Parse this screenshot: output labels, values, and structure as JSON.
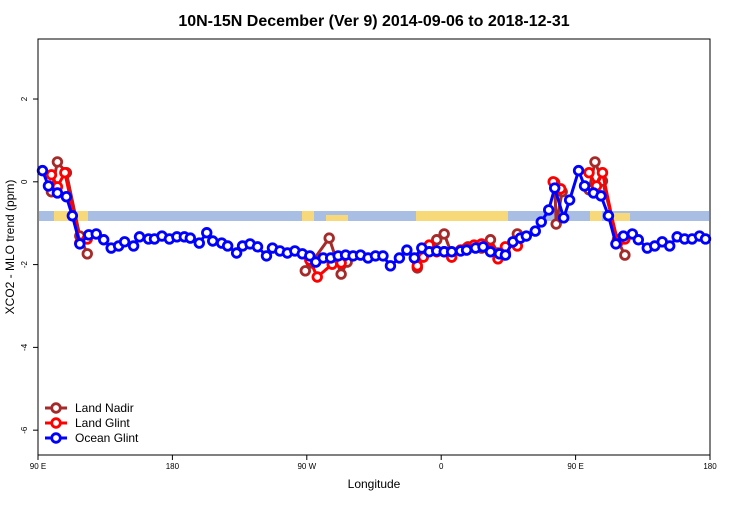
{
  "chart_data": {
    "type": "line",
    "title": "10N-15N December (Ver 9)   2014-09-06 to 2018-12-31",
    "x_label": "Longitude",
    "y_label": "XCO2 - MLO trend (ppm)",
    "xlim": [
      90,
      540
    ],
    "ylim": [
      -6.6,
      3.45
    ],
    "xticks": [
      {
        "value": 90,
        "label": "90 E"
      },
      180,
      {
        "value": 270,
        "label": "90 W"
      },
      {
        "value": 360,
        "label": "0"
      },
      {
        "value": 450,
        "label": "90 E"
      },
      {
        "value": 540,
        "label": "180"
      }
    ],
    "yticks": [
      2,
      0,
      -2,
      -4,
      -6
    ],
    "legend": "bottom-left",
    "series": [
      {
        "name": "Land Nadir",
        "color": "#a52a2a",
        "x": [
          99,
          103,
          109,
          118,
          123,
          null,
          269,
          273,
          285,
          293,
          297,
          null,
          344,
          349,
          357,
          362,
          367,
          373,
          378,
          383,
          387,
          393,
          398,
          403,
          411,
          null,
          436,
          437,
          441,
          null,
          459,
          463,
          468,
          478,
          483
        ],
        "values": [
          -0.24,
          0.48,
          0.22,
          -1.31,
          -1.74,
          null,
          -2.15,
          -1.96,
          -1.36,
          -2.23,
          -1.94,
          null,
          -2.08,
          -1.67,
          -1.4,
          -1.26,
          -1.74,
          -1.65,
          -1.57,
          -1.57,
          -1.6,
          -1.4,
          -1.72,
          -1.72,
          -1.26,
          null,
          -0.02,
          -1.02,
          -0.24,
          null,
          -0.19,
          0.48,
          0.02,
          -1.4,
          -1.77
        ]
      },
      {
        "name": "Land Glint",
        "color": "#ff0000",
        "x": [
          99,
          103,
          108,
          118,
          123,
          null,
          272,
          277,
          287,
          293,
          null,
          344,
          348,
          352,
          357,
          362,
          367,
          373,
          377,
          382,
          387,
          393,
          398,
          403,
          411,
          null,
          435,
          440,
          null,
          459,
          464,
          468,
          478,
          483
        ],
        "values": [
          0.17,
          -0.12,
          0.22,
          -1.48,
          -1.38,
          null,
          -1.89,
          -2.3,
          -1.99,
          -1.96,
          null,
          -2.03,
          -1.82,
          -1.53,
          -1.69,
          -1.69,
          -1.82,
          -1.65,
          -1.6,
          -1.53,
          -1.5,
          -1.62,
          -1.86,
          -1.57,
          -1.55,
          null,
          0.0,
          -0.17,
          null,
          0.22,
          -0.1,
          0.22,
          -1.48,
          -1.38
        ]
      },
      {
        "name": "Ocean Glint",
        "color": "#0000ff",
        "x": [
          93,
          97,
          103,
          109,
          113,
          118,
          124,
          129,
          134,
          139,
          144,
          148,
          154,
          158,
          164,
          168,
          173,
          178,
          183,
          188,
          192,
          198,
          203,
          207,
          213,
          217,
          223,
          227,
          232,
          237,
          243,
          247,
          252,
          257,
          262,
          267,
          272,
          276,
          281,
          286,
          291,
          296,
          301,
          306,
          311,
          316,
          321,
          326,
          332,
          337,
          342,
          347,
          352,
          357,
          362,
          367,
          373,
          377,
          383,
          388,
          393,
          399,
          403,
          408,
          413,
          417,
          423,
          427,
          432,
          436,
          442,
          446,
          452,
          456,
          462,
          467,
          472,
          477,
          482,
          488,
          492,
          498,
          503,
          508,
          513,
          518,
          523,
          528,
          533,
          537
        ],
        "values": [
          0.27,
          -0.1,
          -0.27,
          -0.36,
          -0.82,
          -1.5,
          -1.28,
          -1.26,
          -1.4,
          -1.6,
          -1.55,
          -1.45,
          -1.55,
          -1.33,
          -1.38,
          -1.38,
          -1.31,
          -1.38,
          -1.33,
          -1.33,
          -1.36,
          -1.48,
          -1.23,
          -1.43,
          -1.48,
          -1.55,
          -1.72,
          -1.55,
          -1.5,
          -1.57,
          -1.79,
          -1.6,
          -1.67,
          -1.72,
          -1.67,
          -1.74,
          -1.79,
          -1.94,
          -1.84,
          -1.84,
          -1.79,
          -1.77,
          -1.79,
          -1.77,
          -1.84,
          -1.79,
          -1.79,
          -2.03,
          -1.84,
          -1.65,
          -1.84,
          -1.6,
          -1.69,
          -1.67,
          -1.69,
          -1.69,
          -1.67,
          -1.65,
          -1.6,
          -1.57,
          -1.69,
          -1.74,
          -1.77,
          -1.45,
          -1.36,
          -1.31,
          -1.19,
          -0.97,
          -0.68,
          -0.15,
          -0.87,
          -0.44,
          0.27,
          -0.1,
          -0.27,
          -0.34,
          -0.82,
          -1.5,
          -1.31,
          -1.26,
          -1.4,
          -1.6,
          -1.55,
          -1.45,
          -1.55,
          -1.33,
          -1.38,
          -1.38,
          -1.31,
          -1.38
        ]
      }
    ]
  }
}
